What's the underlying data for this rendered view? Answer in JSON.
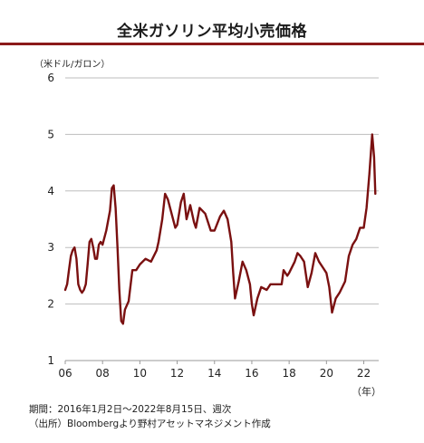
{
  "chart_data": {
    "type": "line",
    "title": "全米ガソリン平均小売価格",
    "ylabel": "（米ドル/ガロン）",
    "xlabel": "（年）",
    "ylim": [
      1,
      6
    ],
    "xlim": [
      2006,
      2022.8
    ],
    "yticks": [
      1,
      2,
      3,
      4,
      5,
      6
    ],
    "xticks": [
      2006,
      2008,
      2010,
      2012,
      2014,
      2016,
      2018,
      2020,
      2022
    ],
    "xtick_labels": [
      "06",
      "08",
      "10",
      "12",
      "14",
      "16",
      "18",
      "20",
      "22"
    ],
    "grid": "horizontal",
    "series": [
      {
        "color": "#7a1010",
        "x": [
          2006.0,
          2006.1,
          2006.2,
          2006.3,
          2006.4,
          2006.5,
          2006.6,
          2006.7,
          2006.8,
          2006.9,
          2007.0,
          2007.1,
          2007.2,
          2007.3,
          2007.4,
          2007.5,
          2007.6,
          2007.7,
          2007.8,
          2007.9,
          2008.0,
          2008.2,
          2008.4,
          2008.5,
          2008.6,
          2008.7,
          2008.8,
          2008.9,
          2009.0,
          2009.1,
          2009.2,
          2009.4,
          2009.6,
          2009.8,
          2010.0,
          2010.3,
          2010.6,
          2010.9,
          2011.0,
          2011.2,
          2011.35,
          2011.5,
          2011.7,
          2011.9,
          2012.0,
          2012.2,
          2012.35,
          2012.5,
          2012.7,
          2012.9,
          2013.0,
          2013.2,
          2013.5,
          2013.8,
          2014.0,
          2014.3,
          2014.5,
          2014.7,
          2014.9,
          2015.0,
          2015.1,
          2015.3,
          2015.5,
          2015.7,
          2015.9,
          2016.0,
          2016.1,
          2016.3,
          2016.5,
          2016.8,
          2017.0,
          2017.3,
          2017.6,
          2017.7,
          2017.9,
          2018.0,
          2018.3,
          2018.45,
          2018.6,
          2018.8,
          2019.0,
          2019.2,
          2019.4,
          2019.6,
          2019.8,
          2020.0,
          2020.15,
          2020.3,
          2020.5,
          2020.7,
          2021.0,
          2021.2,
          2021.4,
          2021.6,
          2021.8,
          2022.0,
          2022.15,
          2022.3,
          2022.45,
          2022.55,
          2022.62
        ],
        "values": [
          2.25,
          2.35,
          2.6,
          2.85,
          2.95,
          3.0,
          2.8,
          2.35,
          2.25,
          2.2,
          2.25,
          2.35,
          2.7,
          3.1,
          3.15,
          3.0,
          2.8,
          2.8,
          3.05,
          3.1,
          3.05,
          3.3,
          3.65,
          4.05,
          4.1,
          3.7,
          3.0,
          2.25,
          1.7,
          1.65,
          1.9,
          2.05,
          2.6,
          2.6,
          2.7,
          2.8,
          2.75,
          2.95,
          3.1,
          3.5,
          3.95,
          3.85,
          3.6,
          3.35,
          3.4,
          3.8,
          3.95,
          3.5,
          3.75,
          3.45,
          3.35,
          3.7,
          3.6,
          3.3,
          3.3,
          3.55,
          3.65,
          3.5,
          3.1,
          2.55,
          2.1,
          2.4,
          2.75,
          2.6,
          2.35,
          2.0,
          1.8,
          2.1,
          2.3,
          2.25,
          2.35,
          2.35,
          2.35,
          2.6,
          2.5,
          2.55,
          2.75,
          2.9,
          2.85,
          2.75,
          2.3,
          2.55,
          2.9,
          2.75,
          2.65,
          2.55,
          2.3,
          1.85,
          2.1,
          2.2,
          2.4,
          2.85,
          3.05,
          3.15,
          3.35,
          3.35,
          3.7,
          4.3,
          5.0,
          4.6,
          3.95
        ]
      }
    ]
  },
  "footer": {
    "period": "期間：2016年1月2日～2022年8月15日、週次",
    "source": "（出所）Bloombergより野村アセットマネジメント作成"
  }
}
